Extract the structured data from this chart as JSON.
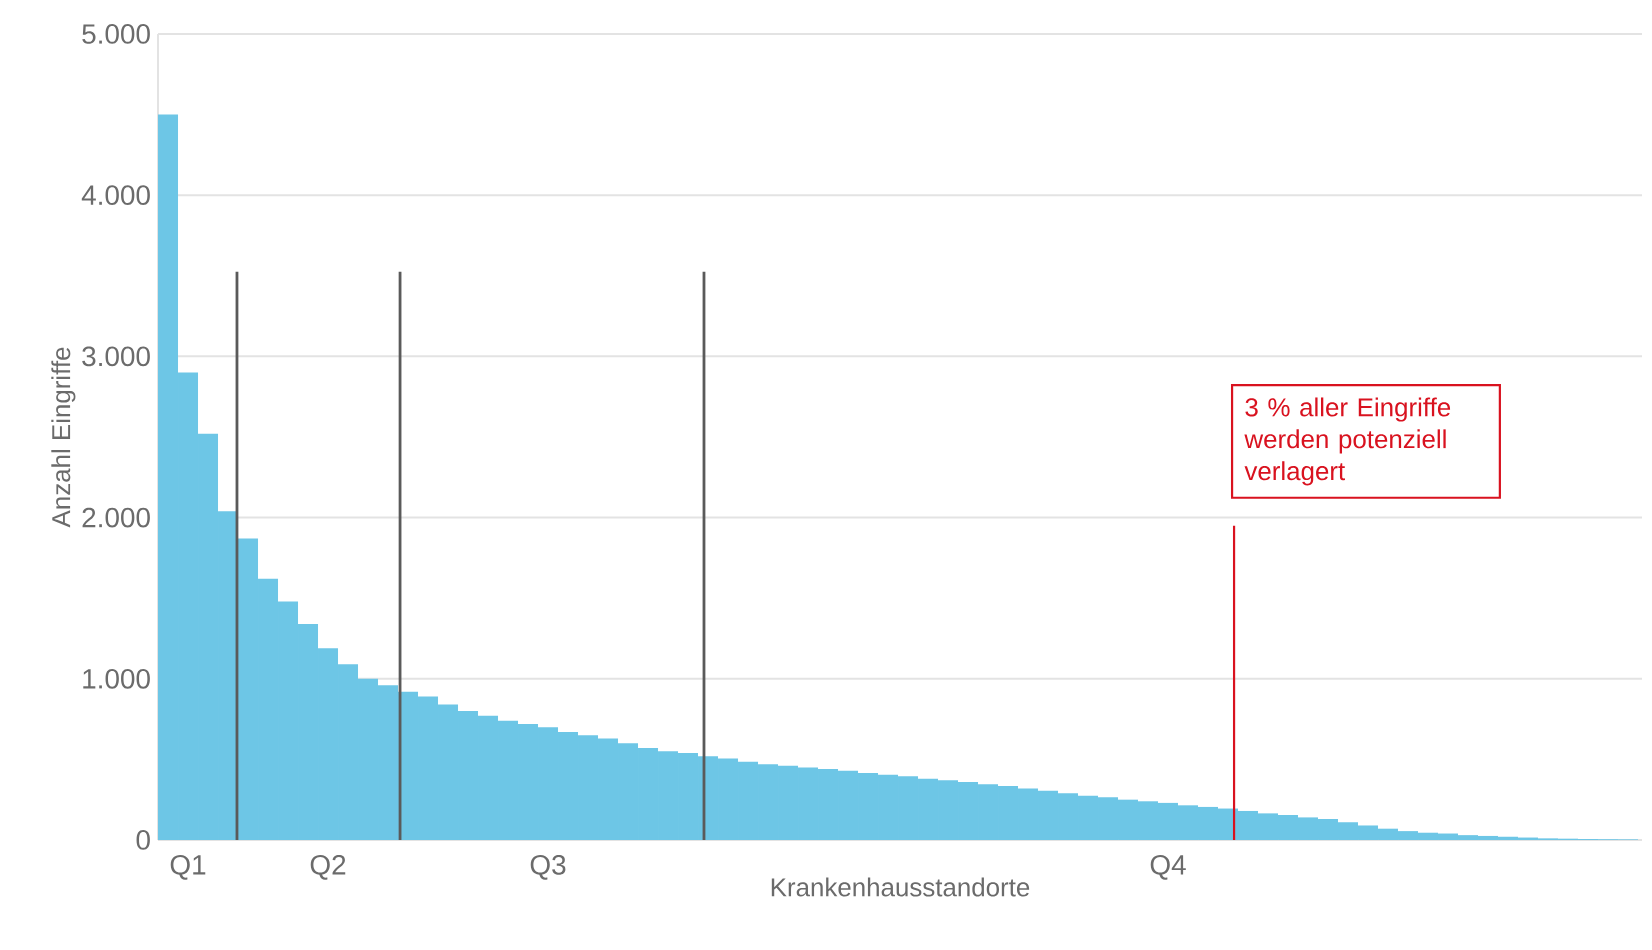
{
  "chart_data": {
    "type": "bar",
    "xlabel": "Krankenhausstandorte",
    "ylabel": "Anzahl Eingriffe",
    "categories": [
      null,
      "Q1",
      null,
      null,
      null,
      null,
      null,
      null,
      "Q2",
      null,
      null,
      null,
      null,
      null,
      null,
      null,
      null,
      null,
      null,
      "Q3",
      null,
      null,
      null,
      null,
      null,
      null,
      null,
      null,
      null,
      null,
      null,
      null,
      null,
      null,
      null,
      null,
      null,
      null,
      null,
      null,
      null,
      null,
      null,
      null,
      null,
      null,
      null,
      null,
      null,
      null,
      "Q4",
      null,
      null,
      null,
      null,
      null,
      null,
      null,
      null,
      null,
      null,
      null,
      null,
      null,
      null,
      null,
      null,
      null,
      null,
      null,
      null,
      null,
      null,
      null
    ],
    "values": [
      4500,
      2900,
      2520,
      2040,
      1870,
      1620,
      1480,
      1340,
      1190,
      1090,
      1000,
      960,
      920,
      890,
      840,
      800,
      770,
      740,
      720,
      700,
      670,
      650,
      630,
      600,
      570,
      550,
      540,
      520,
      505,
      485,
      470,
      460,
      450,
      440,
      430,
      415,
      405,
      395,
      380,
      370,
      360,
      345,
      335,
      320,
      305,
      290,
      275,
      265,
      250,
      240,
      230,
      215,
      205,
      195,
      180,
      165,
      155,
      140,
      130,
      110,
      90,
      70,
      55,
      45,
      40,
      30,
      25,
      20,
      15,
      10,
      8,
      6,
      5,
      4
    ],
    "color": "#6dc6e6",
    "ylim": [
      0,
      5000
    ],
    "yticks": [
      {
        "value": 0,
        "label": "0"
      },
      {
        "value": 1000,
        "label": "1.000"
      },
      {
        "value": 2000,
        "label": "2.000"
      },
      {
        "value": 3000,
        "label": "3.000"
      },
      {
        "value": 4000,
        "label": "4.000"
      },
      {
        "value": 5000,
        "label": "5.000"
      }
    ],
    "grid": "y",
    "annotations": [
      "3 % aller Eingriffe werden potenziell verlagert"
    ]
  }
}
